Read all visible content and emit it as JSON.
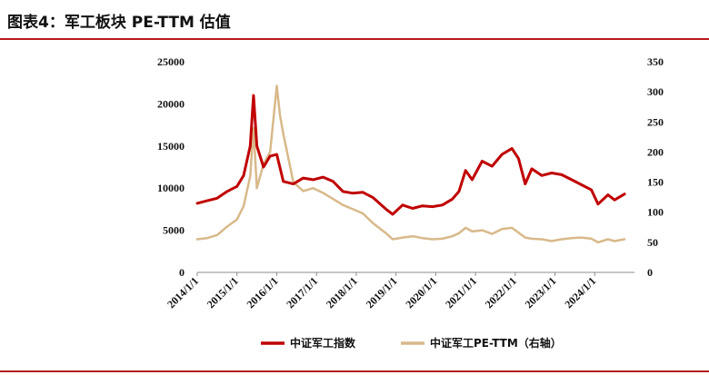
{
  "header": {
    "title": "图表4：军工板块 PE-TTM 估值"
  },
  "colors": {
    "accent": "#b71c1c",
    "index_line": "#c00000",
    "pe_line": "#d8b98a"
  },
  "chart_data": {
    "type": "line",
    "title": "图表4：军工板块 PE-TTM 估值",
    "x_tick_labels": [
      "2014/1/1",
      "2015/1/1",
      "2016/1/1",
      "2017/1/1",
      "2018/1/1",
      "2019/1/1",
      "2020/1/1",
      "2021/1/1",
      "2022/1/1",
      "2023/1/1",
      "2024/1/1"
    ],
    "x_range": [
      "2014-01-01",
      "2024-12-31"
    ],
    "y_left": {
      "ticks": [
        0,
        5000,
        10000,
        15000,
        20000,
        25000
      ],
      "ylim": [
        0,
        25000
      ]
    },
    "y_right": {
      "ticks": [
        0,
        50,
        100,
        150,
        200,
        250,
        300,
        350
      ],
      "ylim": [
        0,
        350
      ]
    },
    "legend_position": "bottom-center",
    "grid": false,
    "series": [
      {
        "name": "中证军工指数",
        "axis": "left",
        "color": "#c00000",
        "x": [
          "2014-01",
          "2014-04",
          "2014-07",
          "2014-10",
          "2015-01",
          "2015-03",
          "2015-05",
          "2015-06",
          "2015-07",
          "2015-09",
          "2015-11",
          "2016-01",
          "2016-03",
          "2016-06",
          "2016-09",
          "2016-12",
          "2017-03",
          "2017-06",
          "2017-09",
          "2017-12",
          "2018-03",
          "2018-06",
          "2018-10",
          "2018-12",
          "2019-03",
          "2019-06",
          "2019-09",
          "2019-12",
          "2020-03",
          "2020-06",
          "2020-08",
          "2020-10",
          "2020-12",
          "2021-03",
          "2021-06",
          "2021-09",
          "2021-12",
          "2022-02",
          "2022-04",
          "2022-06",
          "2022-09",
          "2022-12",
          "2023-03",
          "2023-06",
          "2023-09",
          "2023-12",
          "2024-02",
          "2024-05",
          "2024-07",
          "2024-10"
        ],
        "values": [
          8200,
          8500,
          8800,
          9600,
          10200,
          11500,
          15000,
          21000,
          15000,
          12500,
          13800,
          14000,
          10800,
          10500,
          11200,
          11000,
          11300,
          10800,
          9600,
          9400,
          9500,
          8900,
          7500,
          6900,
          8000,
          7600,
          7900,
          7800,
          8000,
          8700,
          9600,
          12100,
          11000,
          13200,
          12600,
          14000,
          14700,
          13500,
          10500,
          12300,
          11500,
          11800,
          11600,
          11000,
          10400,
          9800,
          8100,
          9200,
          8600,
          9300
        ]
      },
      {
        "name": "中证军工PE-TTM（右轴）",
        "axis": "right",
        "color": "#d8b98a",
        "x": [
          "2014-01",
          "2014-04",
          "2014-07",
          "2014-10",
          "2015-01",
          "2015-03",
          "2015-05",
          "2015-06",
          "2015-07",
          "2015-09",
          "2015-11",
          "2016-01",
          "2016-02",
          "2016-03",
          "2016-06",
          "2016-09",
          "2016-12",
          "2017-03",
          "2017-06",
          "2017-09",
          "2017-12",
          "2018-03",
          "2018-06",
          "2018-10",
          "2018-12",
          "2019-03",
          "2019-06",
          "2019-09",
          "2019-12",
          "2020-03",
          "2020-06",
          "2020-08",
          "2020-10",
          "2020-12",
          "2021-03",
          "2021-06",
          "2021-09",
          "2021-12",
          "2022-02",
          "2022-04",
          "2022-06",
          "2022-09",
          "2022-12",
          "2023-03",
          "2023-06",
          "2023-09",
          "2023-12",
          "2024-02",
          "2024-05",
          "2024-07",
          "2024-10"
        ],
        "values": [
          55,
          57,
          62,
          76,
          88,
          110,
          160,
          240,
          140,
          180,
          200,
          310,
          260,
          230,
          150,
          135,
          140,
          132,
          122,
          112,
          105,
          98,
          82,
          65,
          55,
          58,
          60,
          57,
          55,
          56,
          60,
          65,
          74,
          68,
          70,
          64,
          72,
          74,
          66,
          58,
          56,
          55,
          52,
          55,
          57,
          58,
          56,
          50,
          55,
          52,
          55
        ]
      }
    ]
  }
}
